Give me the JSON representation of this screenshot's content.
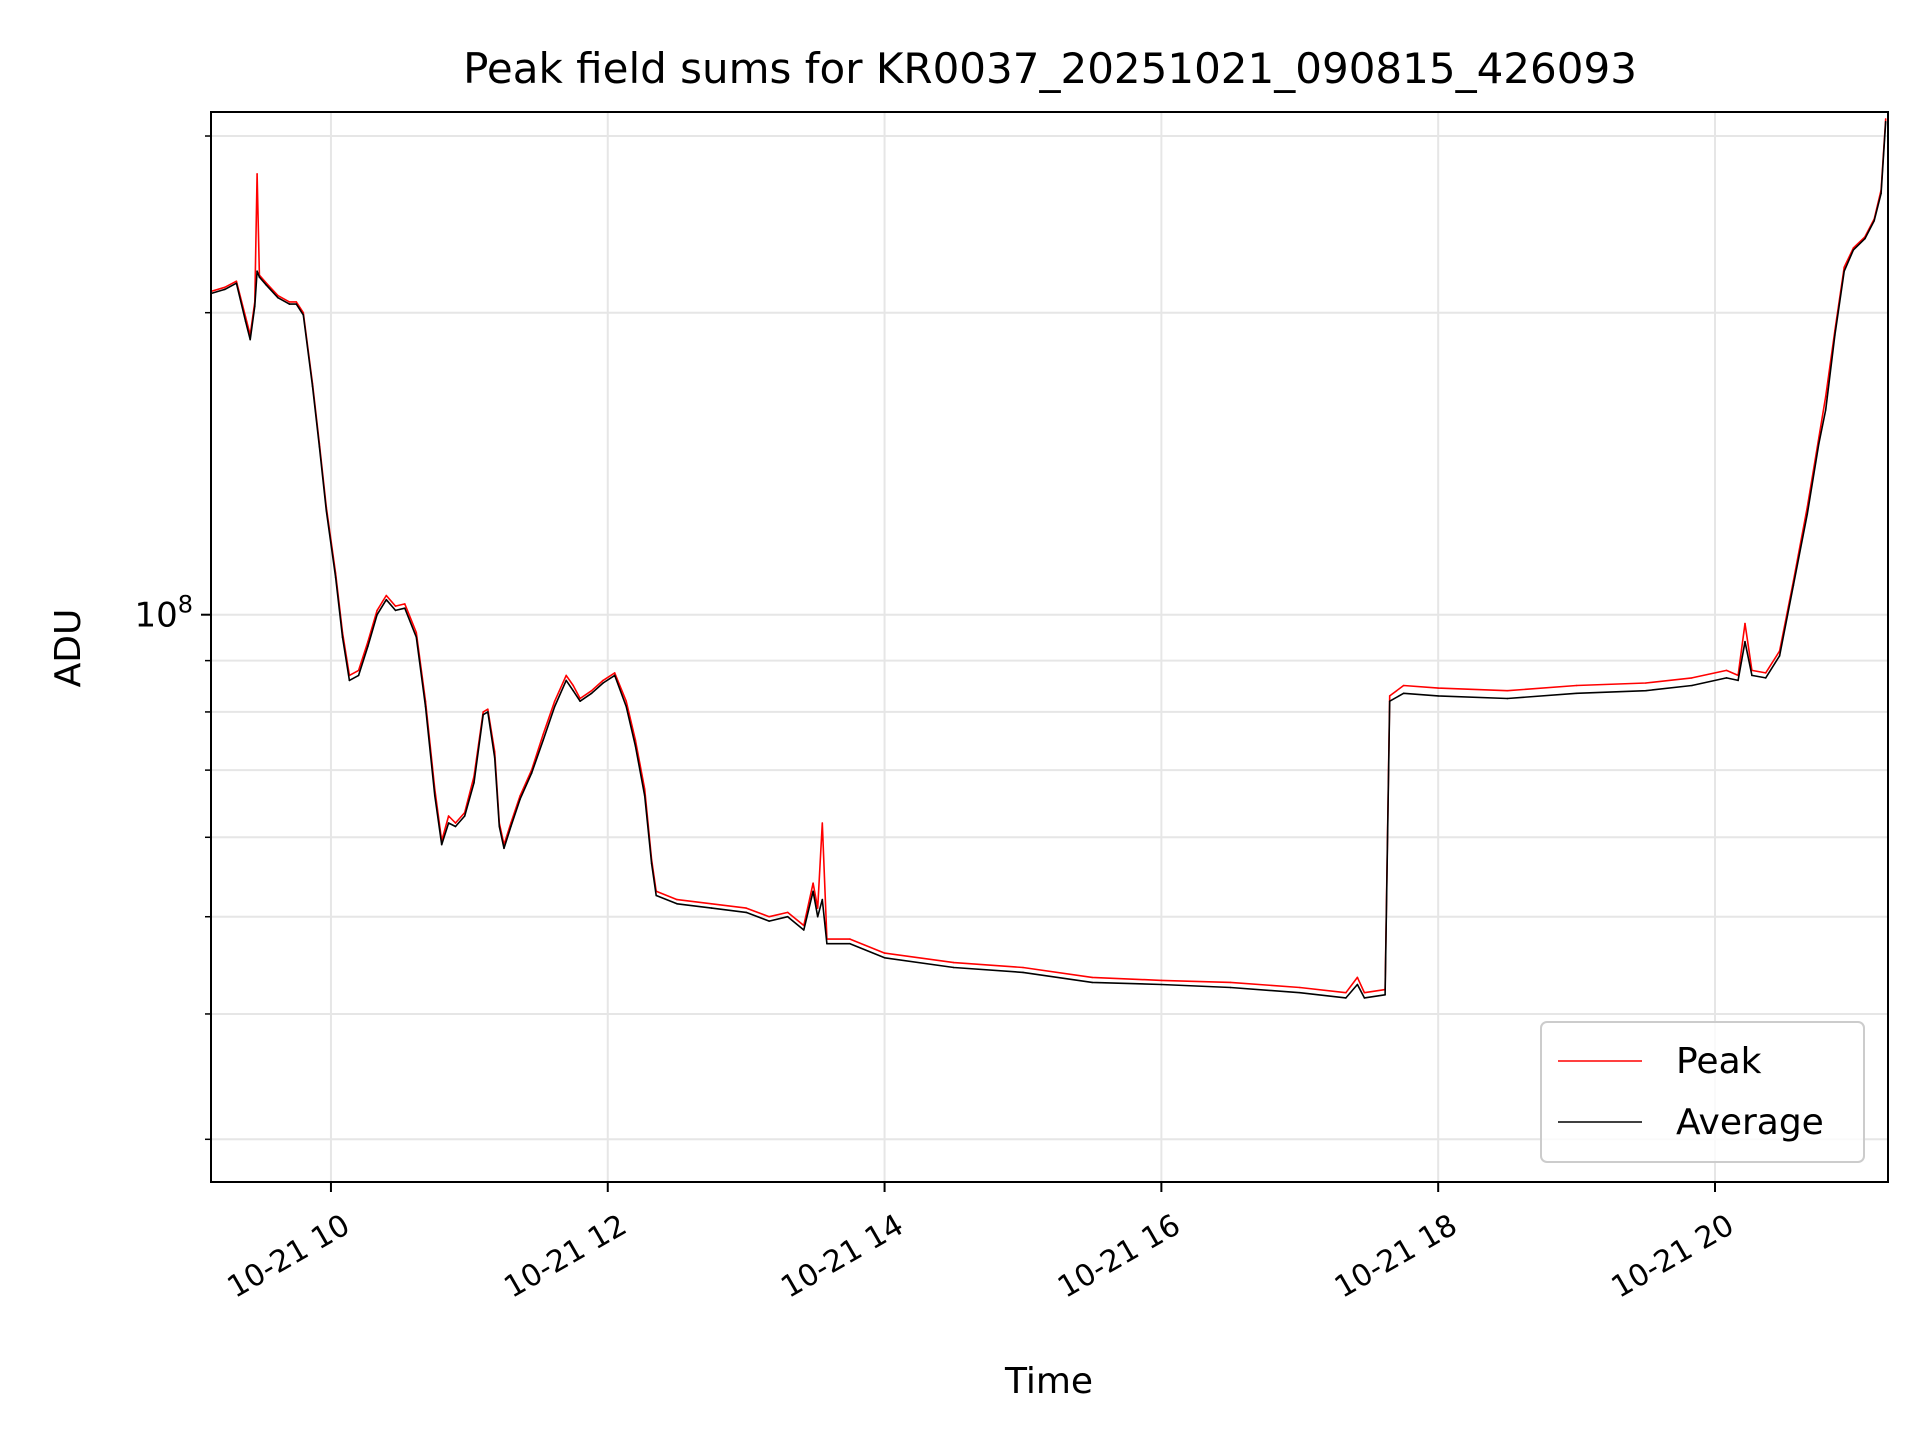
{
  "chart_data": {
    "type": "line",
    "title": "Peak field sums for KR0037_20251021_090815_426093",
    "xlabel": "Time",
    "ylabel": "ADU",
    "y_scale": "log",
    "x_unit": "hours",
    "x_range": [
      "2025-10-21T09:08:00",
      "2025-10-21T21:15:00"
    ],
    "y_range": [
      27200000,
      317000000
    ],
    "y_major_ticks": [
      {
        "value": 100000000,
        "label_base": "10",
        "label_exp": "8"
      }
    ],
    "y_minor_gridlines": [
      30000000,
      40000000,
      50000000,
      60000000,
      70000000,
      80000000,
      90000000,
      200000000,
      300000000
    ],
    "x_ticks": [
      {
        "value": "2025-10-21T10:00",
        "label": "10-21 10"
      },
      {
        "value": "2025-10-21T12:00",
        "label": "10-21 12"
      },
      {
        "value": "2025-10-21T14:00",
        "label": "10-21 14"
      },
      {
        "value": "2025-10-21T16:00",
        "label": "10-21 16"
      },
      {
        "value": "2025-10-21T18:00",
        "label": "10-21 18"
      },
      {
        "value": "2025-10-21T20:00",
        "label": "10-21 20"
      }
    ],
    "grid": true,
    "legend": {
      "position": "lower-right"
    },
    "series": [
      {
        "name": "Peak",
        "color": "#ff0000",
        "points": [
          [
            "2025-10-21T09:08",
            210000000
          ],
          [
            "2025-10-21T09:14",
            212000000
          ],
          [
            "2025-10-21T09:19",
            215000000
          ],
          [
            "2025-10-21T09:23",
            198000000
          ],
          [
            "2025-10-21T09:25",
            190000000
          ],
          [
            "2025-10-21T09:27",
            205000000
          ],
          [
            "2025-10-21T09:28",
            275000000
          ],
          [
            "2025-10-21T09:29",
            218000000
          ],
          [
            "2025-10-21T09:32",
            214000000
          ],
          [
            "2025-10-21T09:37",
            208000000
          ],
          [
            "2025-10-21T09:42",
            205000000
          ],
          [
            "2025-10-21T09:45",
            205000000
          ],
          [
            "2025-10-21T09:48",
            200000000
          ],
          [
            "2025-10-21T09:52",
            170000000
          ],
          [
            "2025-10-21T09:55",
            148000000
          ],
          [
            "2025-10-21T09:58",
            128000000
          ],
          [
            "2025-10-21T10:02",
            110000000
          ],
          [
            "2025-10-21T10:05",
            96000000
          ],
          [
            "2025-10-21T10:08",
            87000000
          ],
          [
            "2025-10-21T10:12",
            88000000
          ],
          [
            "2025-10-21T10:16",
            94000000
          ],
          [
            "2025-10-21T10:20",
            101000000
          ],
          [
            "2025-10-21T10:24",
            104500000
          ],
          [
            "2025-10-21T10:28",
            102000000
          ],
          [
            "2025-10-21T10:32",
            102500000
          ],
          [
            "2025-10-21T10:37",
            96000000
          ],
          [
            "2025-10-21T10:41",
            82000000
          ],
          [
            "2025-10-21T10:45",
            67000000
          ],
          [
            "2025-10-21T10:48",
            59500000
          ],
          [
            "2025-10-21T10:51",
            63000000
          ],
          [
            "2025-10-21T10:54",
            62000000
          ],
          [
            "2025-10-21T10:58",
            63500000
          ],
          [
            "2025-10-21T11:02",
            69000000
          ],
          [
            "2025-10-21T11:06",
            80000000
          ],
          [
            "2025-10-21T11:08",
            80500000
          ],
          [
            "2025-10-21T11:11",
            73000000
          ],
          [
            "2025-10-21T11:13",
            62000000
          ],
          [
            "2025-10-21T11:15",
            59000000
          ],
          [
            "2025-10-21T11:18",
            62000000
          ],
          [
            "2025-10-21T11:22",
            66000000
          ],
          [
            "2025-10-21T11:27",
            70000000
          ],
          [
            "2025-10-21T11:32",
            76000000
          ],
          [
            "2025-10-21T11:37",
            82000000
          ],
          [
            "2025-10-21T11:42",
            87000000
          ],
          [
            "2025-10-21T11:45",
            85000000
          ],
          [
            "2025-10-21T11:48",
            82500000
          ],
          [
            "2025-10-21T11:53",
            84000000
          ],
          [
            "2025-10-21T11:58",
            86000000
          ],
          [
            "2025-10-21T12:03",
            87500000
          ],
          [
            "2025-10-21T12:08",
            82000000
          ],
          [
            "2025-10-21T12:12",
            75000000
          ],
          [
            "2025-10-21T12:16",
            67000000
          ],
          [
            "2025-10-21T12:19",
            57000000
          ],
          [
            "2025-10-21T12:21",
            53000000
          ],
          [
            "2025-10-21T12:30",
            52000000
          ],
          [
            "2025-10-21T12:45",
            51500000
          ],
          [
            "2025-10-21T13:00",
            51000000
          ],
          [
            "2025-10-21T13:10",
            50000000
          ],
          [
            "2025-10-21T13:18",
            50500000
          ],
          [
            "2025-10-21T13:25",
            49000000
          ],
          [
            "2025-10-21T13:29",
            54000000
          ],
          [
            "2025-10-21T13:31",
            51000000
          ],
          [
            "2025-10-21T13:33",
            62000000
          ],
          [
            "2025-10-21T13:35",
            47500000
          ],
          [
            "2025-10-21T13:45",
            47500000
          ],
          [
            "2025-10-21T14:00",
            46000000
          ],
          [
            "2025-10-21T14:30",
            45000000
          ],
          [
            "2025-10-21T15:00",
            44500000
          ],
          [
            "2025-10-21T15:30",
            43500000
          ],
          [
            "2025-10-21T16:00",
            43200000
          ],
          [
            "2025-10-21T16:30",
            43000000
          ],
          [
            "2025-10-21T17:00",
            42500000
          ],
          [
            "2025-10-21T17:20",
            42000000
          ],
          [
            "2025-10-21T17:25",
            43500000
          ],
          [
            "2025-10-21T17:28",
            42000000
          ],
          [
            "2025-10-21T17:37",
            42300000
          ],
          [
            "2025-10-21T17:39",
            83000000
          ],
          [
            "2025-10-21T17:45",
            85000000
          ],
          [
            "2025-10-21T18:00",
            84500000
          ],
          [
            "2025-10-21T18:30",
            84000000
          ],
          [
            "2025-10-21T19:00",
            85000000
          ],
          [
            "2025-10-21T19:30",
            85500000
          ],
          [
            "2025-10-21T19:50",
            86500000
          ],
          [
            "2025-10-21T20:05",
            88000000
          ],
          [
            "2025-10-21T20:10",
            87000000
          ],
          [
            "2025-10-21T20:13",
            98000000
          ],
          [
            "2025-10-21T20:16",
            88000000
          ],
          [
            "2025-10-21T20:22",
            87500000
          ],
          [
            "2025-10-21T20:28",
            92000000
          ],
          [
            "2025-10-21T20:34",
            108000000
          ],
          [
            "2025-10-21T20:40",
            128000000
          ],
          [
            "2025-10-21T20:45",
            150000000
          ],
          [
            "2025-10-21T20:48",
            165000000
          ],
          [
            "2025-10-21T20:52",
            192000000
          ],
          [
            "2025-10-21T20:56",
            222000000
          ],
          [
            "2025-10-21T21:00",
            232000000
          ],
          [
            "2025-10-21T21:05",
            238000000
          ],
          [
            "2025-10-21T21:09",
            248000000
          ],
          [
            "2025-10-21T21:12",
            265000000
          ],
          [
            "2025-10-21T21:14",
            312000000
          ]
        ]
      },
      {
        "name": "Average",
        "color": "#000000",
        "points": [
          [
            "2025-10-21T09:08",
            209000000
          ],
          [
            "2025-10-21T09:14",
            211000000
          ],
          [
            "2025-10-21T09:19",
            214000000
          ],
          [
            "2025-10-21T09:23",
            196000000
          ],
          [
            "2025-10-21T09:25",
            188000000
          ],
          [
            "2025-10-21T09:27",
            203000000
          ],
          [
            "2025-10-21T09:28",
            220000000
          ],
          [
            "2025-10-21T09:29",
            217000000
          ],
          [
            "2025-10-21T09:32",
            213000000
          ],
          [
            "2025-10-21T09:37",
            207000000
          ],
          [
            "2025-10-21T09:42",
            204000000
          ],
          [
            "2025-10-21T09:45",
            204000000
          ],
          [
            "2025-10-21T09:48",
            199000000
          ],
          [
            "2025-10-21T09:52",
            169000000
          ],
          [
            "2025-10-21T09:55",
            147000000
          ],
          [
            "2025-10-21T09:58",
            127000000
          ],
          [
            "2025-10-21T10:02",
            109000000
          ],
          [
            "2025-10-21T10:05",
            95000000
          ],
          [
            "2025-10-21T10:08",
            86000000
          ],
          [
            "2025-10-21T10:12",
            87000000
          ],
          [
            "2025-10-21T10:16",
            93000000
          ],
          [
            "2025-10-21T10:20",
            100000000
          ],
          [
            "2025-10-21T10:24",
            103500000
          ],
          [
            "2025-10-21T10:28",
            101000000
          ],
          [
            "2025-10-21T10:32",
            101500000
          ],
          [
            "2025-10-21T10:37",
            95000000
          ],
          [
            "2025-10-21T10:41",
            81000000
          ],
          [
            "2025-10-21T10:45",
            66000000
          ],
          [
            "2025-10-21T10:48",
            59000000
          ],
          [
            "2025-10-21T10:51",
            62000000
          ],
          [
            "2025-10-21T10:54",
            61500000
          ],
          [
            "2025-10-21T10:58",
            63000000
          ],
          [
            "2025-10-21T11:02",
            68000000
          ],
          [
            "2025-10-21T11:06",
            79500000
          ],
          [
            "2025-10-21T11:08",
            80000000
          ],
          [
            "2025-10-21T11:11",
            72000000
          ],
          [
            "2025-10-21T11:13",
            61500000
          ],
          [
            "2025-10-21T11:15",
            58500000
          ],
          [
            "2025-10-21T11:18",
            61500000
          ],
          [
            "2025-10-21T11:22",
            65500000
          ],
          [
            "2025-10-21T11:27",
            69500000
          ],
          [
            "2025-10-21T11:32",
            75000000
          ],
          [
            "2025-10-21T11:37",
            81000000
          ],
          [
            "2025-10-21T11:42",
            86000000
          ],
          [
            "2025-10-21T11:45",
            84000000
          ],
          [
            "2025-10-21T11:48",
            82000000
          ],
          [
            "2025-10-21T11:53",
            83500000
          ],
          [
            "2025-10-21T11:58",
            85500000
          ],
          [
            "2025-10-21T12:03",
            87000000
          ],
          [
            "2025-10-21T12:08",
            81000000
          ],
          [
            "2025-10-21T12:12",
            74000000
          ],
          [
            "2025-10-21T12:16",
            66000000
          ],
          [
            "2025-10-21T12:19",
            56500000
          ],
          [
            "2025-10-21T12:21",
            52500000
          ],
          [
            "2025-10-21T12:30",
            51500000
          ],
          [
            "2025-10-21T12:45",
            51000000
          ],
          [
            "2025-10-21T13:00",
            50500000
          ],
          [
            "2025-10-21T13:10",
            49500000
          ],
          [
            "2025-10-21T13:18",
            50000000
          ],
          [
            "2025-10-21T13:25",
            48500000
          ],
          [
            "2025-10-21T13:29",
            53000000
          ],
          [
            "2025-10-21T13:31",
            50000000
          ],
          [
            "2025-10-21T13:33",
            52000000
          ],
          [
            "2025-10-21T13:35",
            47000000
          ],
          [
            "2025-10-21T13:45",
            47000000
          ],
          [
            "2025-10-21T14:00",
            45500000
          ],
          [
            "2025-10-21T14:30",
            44500000
          ],
          [
            "2025-10-21T15:00",
            44000000
          ],
          [
            "2025-10-21T15:30",
            43000000
          ],
          [
            "2025-10-21T16:00",
            42800000
          ],
          [
            "2025-10-21T16:30",
            42500000
          ],
          [
            "2025-10-21T17:00",
            42000000
          ],
          [
            "2025-10-21T17:20",
            41500000
          ],
          [
            "2025-10-21T17:25",
            42800000
          ],
          [
            "2025-10-21T17:28",
            41500000
          ],
          [
            "2025-10-21T17:37",
            41800000
          ],
          [
            "2025-10-21T17:39",
            82000000
          ],
          [
            "2025-10-21T17:45",
            83500000
          ],
          [
            "2025-10-21T18:00",
            83000000
          ],
          [
            "2025-10-21T18:30",
            82500000
          ],
          [
            "2025-10-21T19:00",
            83500000
          ],
          [
            "2025-10-21T19:30",
            84000000
          ],
          [
            "2025-10-21T19:50",
            85000000
          ],
          [
            "2025-10-21T20:05",
            86500000
          ],
          [
            "2025-10-21T20:10",
            86000000
          ],
          [
            "2025-10-21T20:13",
            94000000
          ],
          [
            "2025-10-21T20:16",
            87000000
          ],
          [
            "2025-10-21T20:22",
            86500000
          ],
          [
            "2025-10-21T20:28",
            91000000
          ],
          [
            "2025-10-21T20:34",
            107000000
          ],
          [
            "2025-10-21T20:40",
            126000000
          ],
          [
            "2025-10-21T20:45",
            148000000
          ],
          [
            "2025-10-21T20:48",
            160000000
          ],
          [
            "2025-10-21T20:52",
            190000000
          ],
          [
            "2025-10-21T20:56",
            220000000
          ],
          [
            "2025-10-21T21:00",
            231000000
          ],
          [
            "2025-10-21T21:05",
            237000000
          ],
          [
            "2025-10-21T21:09",
            247000000
          ],
          [
            "2025-10-21T21:12",
            263000000
          ],
          [
            "2025-10-21T21:14",
            310000000
          ]
        ]
      }
    ]
  }
}
